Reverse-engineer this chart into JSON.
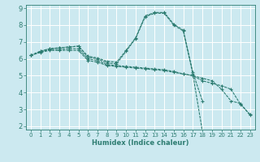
{
  "background_color": "#cce9f0",
  "grid_color": "#ffffff",
  "line_color": "#2e7d72",
  "xlabel": "Humidex (Indice chaleur)",
  "xlim": [
    -0.5,
    23.5
  ],
  "ylim": [
    1.8,
    9.2
  ],
  "xticks": [
    0,
    1,
    2,
    3,
    4,
    5,
    6,
    7,
    8,
    9,
    10,
    11,
    12,
    13,
    14,
    15,
    16,
    17,
    18,
    19,
    20,
    21,
    22,
    23
  ],
  "yticks": [
    2,
    3,
    4,
    5,
    6,
    7,
    8,
    9
  ],
  "curves": [
    {
      "x": [
        0,
        1,
        2,
        3,
        4,
        5,
        6,
        7,
        8,
        9,
        10,
        11,
        12,
        13,
        14,
        15,
        16,
        17,
        18
      ],
      "y": [
        6.2,
        6.45,
        6.6,
        6.65,
        6.7,
        6.75,
        6.15,
        6.05,
        5.85,
        5.8,
        6.5,
        7.25,
        8.55,
        8.75,
        8.75,
        8.05,
        7.7,
        5.2,
        3.5
      ]
    },
    {
      "x": [
        0,
        1,
        2,
        3,
        4,
        5,
        6,
        7,
        8,
        9,
        10,
        11,
        12,
        13,
        14,
        15,
        16,
        17,
        18
      ],
      "y": [
        6.2,
        6.45,
        6.6,
        6.65,
        6.7,
        6.75,
        6.1,
        6.0,
        5.75,
        5.7,
        6.45,
        7.2,
        8.5,
        8.7,
        8.7,
        8.0,
        7.65,
        5.1,
        1.7
      ]
    },
    {
      "x": [
        0,
        1,
        2,
        3,
        4,
        5,
        6,
        7,
        8,
        9,
        10,
        11,
        12,
        13,
        14,
        15,
        16,
        17,
        18,
        19,
        20,
        21,
        22,
        23
      ],
      "y": [
        6.2,
        6.4,
        6.55,
        6.55,
        6.6,
        6.6,
        6.0,
        5.9,
        5.65,
        5.6,
        5.55,
        5.5,
        5.45,
        5.4,
        5.35,
        5.25,
        5.1,
        5.0,
        4.85,
        4.7,
        4.2,
        3.5,
        3.35,
        2.65
      ]
    },
    {
      "x": [
        0,
        1,
        2,
        3,
        4,
        5,
        6,
        7,
        8,
        9,
        10,
        11,
        12,
        13,
        14,
        15,
        16,
        17,
        18,
        19,
        20,
        21,
        22,
        23
      ],
      "y": [
        6.2,
        6.38,
        6.5,
        6.5,
        6.5,
        6.5,
        5.9,
        5.8,
        5.6,
        5.55,
        5.5,
        5.45,
        5.4,
        5.35,
        5.3,
        5.2,
        5.1,
        5.0,
        4.7,
        4.55,
        4.4,
        4.2,
        3.3,
        2.7
      ]
    }
  ]
}
